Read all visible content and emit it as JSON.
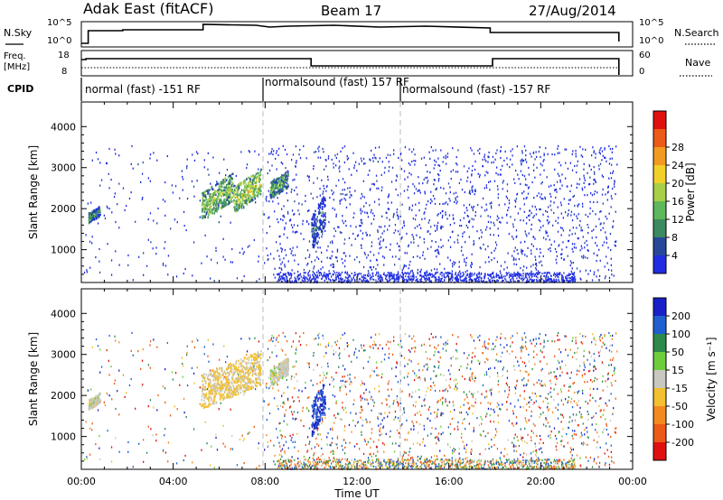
{
  "header": {
    "station": "Adak East (fitACF)",
    "beam": "Beam 17",
    "date": "27/Aug/2014"
  },
  "strip_panels": {
    "nsky": {
      "label": "N.Sky",
      "right_label": "N.Search",
      "ticks_left": [
        "10^5",
        "10^0"
      ],
      "ticks_right": [
        "10^5",
        "10^0"
      ]
    },
    "freq": {
      "label_top": "Freq.",
      "label_unit": "[MHz]",
      "right_label": "Nave",
      "ticks_left": [
        "18",
        "8"
      ],
      "ticks_right": [
        "60",
        "0"
      ]
    },
    "cpid": {
      "label": "CPID",
      "segments": [
        {
          "label": "normal (fast) -151 RF",
          "start_hour": 0.0
        },
        {
          "label": "normalsound (fast) 157 RF",
          "start_hour": 8.0
        },
        {
          "label": "normalsound (fast) -157 RF",
          "start_hour": 14.0
        }
      ]
    }
  },
  "chart_data": [
    {
      "type": "heatmap",
      "title": "",
      "xlabel": "",
      "ylabel": "Slant Range [km]",
      "x_range_hours": [
        0,
        24
      ],
      "ylim": [
        200,
        4600
      ],
      "y_ticks": [
        "1000",
        "2000",
        "3000",
        "4000"
      ],
      "colorbar": {
        "label": "Power [dB]",
        "ticks": [
          "4",
          "8",
          "12",
          "16",
          "20",
          "24",
          "28"
        ],
        "colors": [
          "#1f2ee0",
          "#27489a",
          "#3d8a60",
          "#5fb85b",
          "#a7d048",
          "#f2d02a",
          "#f29a20",
          "#ec5a18",
          "#e01010"
        ]
      },
      "features": [
        {
          "hours": [
            0.3,
            0.8
          ],
          "range_km": [
            1700,
            2050
          ],
          "level_db": 10
        },
        {
          "hours": [
            5.2,
            6.6
          ],
          "range_km": [
            1800,
            2800
          ],
          "level_db": 16
        },
        {
          "hours": [
            6.6,
            7.8
          ],
          "range_km": [
            2000,
            2900
          ],
          "level_db": 18
        },
        {
          "hours": [
            8.2,
            9.0
          ],
          "range_km": [
            2300,
            2900
          ],
          "level_db": 12
        },
        {
          "hours": [
            10.0,
            10.6
          ],
          "range_km": [
            1100,
            2300
          ],
          "level_db": 6
        }
      ]
    },
    {
      "type": "heatmap",
      "title": "",
      "xlabel": "Time UT",
      "ylabel": "Slant Range [km]",
      "x_range_hours": [
        0,
        24
      ],
      "x_ticks": [
        "00:00",
        "04:00",
        "08:00",
        "12:00",
        "16:00",
        "20:00",
        "00:00"
      ],
      "ylim": [
        200,
        4600
      ],
      "y_ticks": [
        "1000",
        "2000",
        "3000",
        "4000"
      ],
      "colorbar": {
        "label": "Velocity [m s⁻¹]",
        "ticks": [
          "200",
          "100",
          "50",
          "15",
          "-15",
          "-50",
          "-100",
          "-200"
        ],
        "colors": [
          "#1a20c8",
          "#1f5fd0",
          "#2e8a4a",
          "#6dcd3a",
          "#c8c8c0",
          "#f2c030",
          "#f28a20",
          "#ec5a18",
          "#e01010"
        ]
      },
      "features": [
        {
          "hours": [
            0.3,
            0.8
          ],
          "range_km": [
            1700,
            2050
          ],
          "velocity": 0
        },
        {
          "hours": [
            5.2,
            7.8
          ],
          "range_km": [
            1800,
            3000
          ],
          "velocity": -20
        },
        {
          "hours": [
            8.2,
            9.0
          ],
          "range_km": [
            2300,
            2900
          ],
          "velocity": 0
        },
        {
          "hours": [
            10.0,
            10.6
          ],
          "range_km": [
            1100,
            2300
          ],
          "velocity": 200
        }
      ]
    }
  ]
}
